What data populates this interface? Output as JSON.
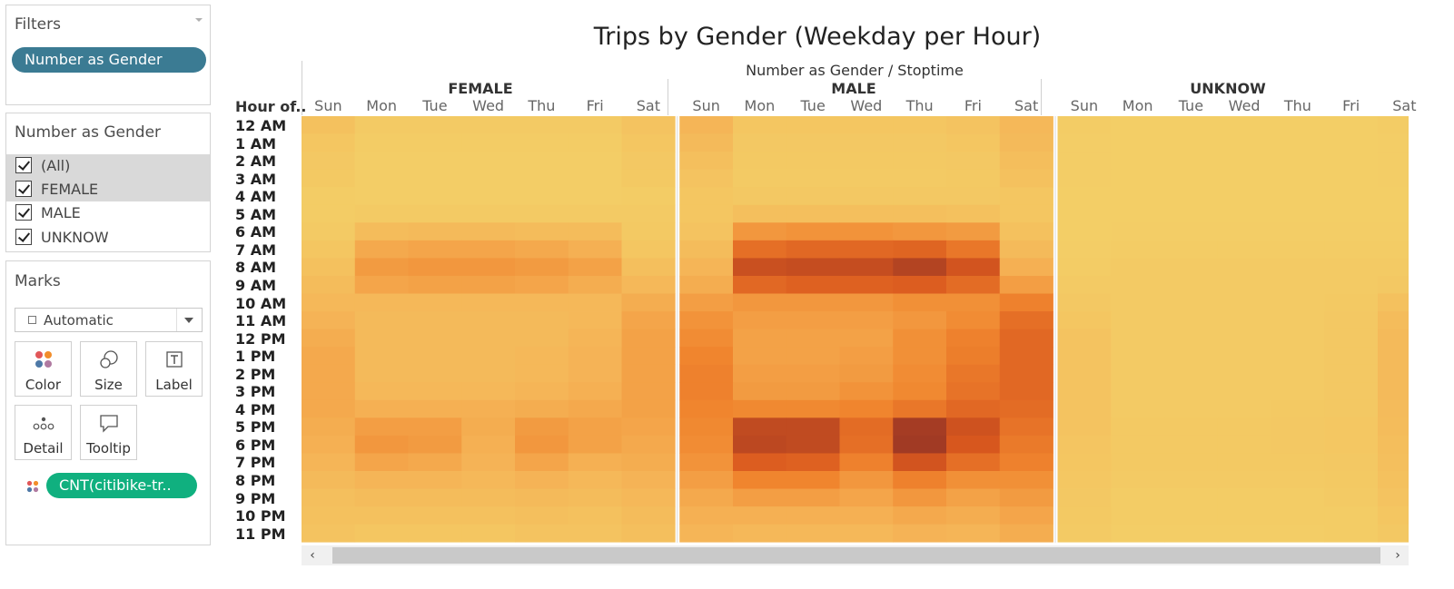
{
  "filters_panel": {
    "title": "Filters",
    "pill": "Number as Gender"
  },
  "gender_panel": {
    "title": "Number as Gender",
    "options": [
      {
        "label": "(All)",
        "checked": true,
        "highlighted": true
      },
      {
        "label": "FEMALE",
        "checked": true,
        "highlighted": true
      },
      {
        "label": "MALE",
        "checked": true,
        "highlighted": false
      },
      {
        "label": "UNKNOW",
        "checked": true,
        "highlighted": false
      }
    ]
  },
  "marks_panel": {
    "title": "Marks",
    "mark_type": "Automatic",
    "buttons": [
      {
        "label": "Color",
        "icon": "color-dots-icon"
      },
      {
        "label": "Size",
        "icon": "size-circles-icon"
      },
      {
        "label": "Label",
        "icon": "text-label-icon"
      },
      {
        "label": "Detail",
        "icon": "detail-dots-icon"
      },
      {
        "label": "Tooltip",
        "icon": "tooltip-bubble-icon"
      }
    ],
    "field_pill": "CNT(citibike-tr.."
  },
  "colors": {
    "filter_pill": "#3b7b93",
    "measure_pill": "#10b07f",
    "heat_low": "#f3cf67",
    "heat_high": "#a13a24"
  },
  "chart_data": {
    "type": "heatmap",
    "title": "Trips by Gender (Weekday per Hour)",
    "column_header": "Number as Gender / Stoptime",
    "row_header": "Hour of..",
    "genders": [
      "FEMALE",
      "MALE",
      "UNKNOW"
    ],
    "days": [
      "Sun",
      "Mon",
      "Tue",
      "Wed",
      "Thu",
      "Fri",
      "Sat"
    ],
    "hours": [
      "12 AM",
      "1 AM",
      "2 AM",
      "3 AM",
      "4 AM",
      "5 AM",
      "6 AM",
      "7 AM",
      "8 AM",
      "9 AM",
      "10 AM",
      "11 AM",
      "12 PM",
      "1 PM",
      "2 PM",
      "3 PM",
      "4 PM",
      "5 PM",
      "6 PM",
      "7 PM",
      "8 PM",
      "9 PM",
      "10 PM",
      "11 PM"
    ],
    "value_scale": "relative intensity 0-100 (color only, no legend shown)",
    "values": {
      "FEMALE": [
        [
          12,
          4,
          4,
          4,
          4,
          4,
          10
        ],
        [
          8,
          3,
          3,
          3,
          3,
          3,
          8
        ],
        [
          6,
          2,
          2,
          2,
          2,
          2,
          6
        ],
        [
          5,
          2,
          2,
          2,
          2,
          2,
          5
        ],
        [
          3,
          2,
          2,
          2,
          2,
          2,
          3
        ],
        [
          3,
          4,
          4,
          4,
          4,
          4,
          4
        ],
        [
          4,
          16,
          18,
          18,
          16,
          16,
          5
        ],
        [
          8,
          30,
          32,
          32,
          30,
          26,
          8
        ],
        [
          12,
          38,
          40,
          40,
          38,
          34,
          14
        ],
        [
          16,
          32,
          34,
          34,
          32,
          28,
          20
        ],
        [
          20,
          20,
          20,
          20,
          20,
          20,
          28
        ],
        [
          24,
          18,
          18,
          18,
          18,
          20,
          32
        ],
        [
          28,
          18,
          18,
          18,
          18,
          22,
          34
        ],
        [
          30,
          18,
          18,
          18,
          20,
          24,
          34
        ],
        [
          30,
          18,
          18,
          18,
          20,
          24,
          34
        ],
        [
          30,
          20,
          20,
          20,
          22,
          26,
          34
        ],
        [
          30,
          26,
          26,
          26,
          28,
          30,
          34
        ],
        [
          28,
          36,
          36,
          28,
          38,
          34,
          32
        ],
        [
          26,
          40,
          38,
          26,
          40,
          34,
          30
        ],
        [
          22,
          32,
          30,
          24,
          32,
          26,
          28
        ],
        [
          18,
          22,
          22,
          20,
          24,
          20,
          24
        ],
        [
          14,
          16,
          16,
          16,
          18,
          16,
          20
        ],
        [
          12,
          12,
          12,
          12,
          14,
          12,
          16
        ],
        [
          10,
          8,
          8,
          8,
          10,
          10,
          14
        ]
      ],
      "MALE": [
        [
          22,
          8,
          8,
          8,
          8,
          10,
          20
        ],
        [
          18,
          6,
          6,
          6,
          6,
          8,
          18
        ],
        [
          14,
          5,
          5,
          5,
          5,
          6,
          15
        ],
        [
          10,
          4,
          4,
          4,
          4,
          5,
          12
        ],
        [
          8,
          6,
          6,
          6,
          6,
          6,
          8
        ],
        [
          8,
          14,
          14,
          14,
          14,
          12,
          8
        ],
        [
          10,
          40,
          42,
          42,
          40,
          38,
          12
        ],
        [
          16,
          62,
          66,
          66,
          68,
          58,
          18
        ],
        [
          22,
          82,
          84,
          84,
          92,
          78,
          26
        ],
        [
          28,
          66,
          70,
          70,
          72,
          64,
          36
        ],
        [
          36,
          40,
          40,
          40,
          44,
          44,
          52
        ],
        [
          42,
          36,
          36,
          36,
          40,
          46,
          62
        ],
        [
          46,
          34,
          34,
          34,
          44,
          52,
          66
        ],
        [
          50,
          34,
          34,
          36,
          44,
          54,
          66
        ],
        [
          52,
          36,
          36,
          38,
          46,
          58,
          66
        ],
        [
          52,
          38,
          38,
          42,
          48,
          60,
          66
        ],
        [
          50,
          48,
          48,
          50,
          58,
          66,
          64
        ],
        [
          48,
          86,
          86,
          64,
          98,
          80,
          60
        ],
        [
          46,
          88,
          86,
          62,
          100,
          76,
          56
        ],
        [
          42,
          72,
          70,
          52,
          78,
          62,
          52
        ],
        [
          36,
          50,
          50,
          40,
          52,
          44,
          44
        ],
        [
          30,
          36,
          36,
          32,
          40,
          34,
          38
        ],
        [
          26,
          26,
          26,
          26,
          30,
          28,
          32
        ],
        [
          22,
          20,
          20,
          20,
          24,
          22,
          28
        ]
      ],
      "UNKNOW": [
        [
          3,
          1,
          1,
          1,
          1,
          1,
          3
        ],
        [
          2,
          1,
          1,
          1,
          1,
          1,
          2
        ],
        [
          2,
          1,
          1,
          1,
          1,
          1,
          2
        ],
        [
          2,
          1,
          1,
          1,
          1,
          1,
          2
        ],
        [
          1,
          1,
          1,
          1,
          1,
          1,
          1
        ],
        [
          1,
          1,
          1,
          1,
          1,
          1,
          1
        ],
        [
          1,
          2,
          2,
          2,
          2,
          2,
          2
        ],
        [
          2,
          3,
          3,
          3,
          3,
          3,
          3
        ],
        [
          3,
          4,
          4,
          4,
          4,
          4,
          4
        ],
        [
          4,
          4,
          4,
          4,
          4,
          4,
          6
        ],
        [
          6,
          4,
          4,
          4,
          4,
          5,
          12
        ],
        [
          8,
          4,
          4,
          4,
          4,
          6,
          16
        ],
        [
          10,
          4,
          4,
          4,
          4,
          6,
          18
        ],
        [
          10,
          4,
          4,
          4,
          4,
          6,
          18
        ],
        [
          10,
          4,
          4,
          4,
          4,
          6,
          18
        ],
        [
          10,
          4,
          4,
          4,
          4,
          6,
          18
        ],
        [
          10,
          4,
          4,
          4,
          5,
          6,
          17
        ],
        [
          10,
          5,
          5,
          5,
          6,
          7,
          16
        ],
        [
          9,
          5,
          5,
          5,
          6,
          7,
          15
        ],
        [
          8,
          5,
          5,
          5,
          5,
          6,
          14
        ],
        [
          7,
          4,
          4,
          4,
          4,
          5,
          12
        ],
        [
          6,
          3,
          3,
          3,
          3,
          4,
          10
        ],
        [
          5,
          3,
          3,
          3,
          3,
          3,
          8
        ],
        [
          4,
          2,
          2,
          2,
          2,
          3,
          6
        ]
      ]
    }
  }
}
